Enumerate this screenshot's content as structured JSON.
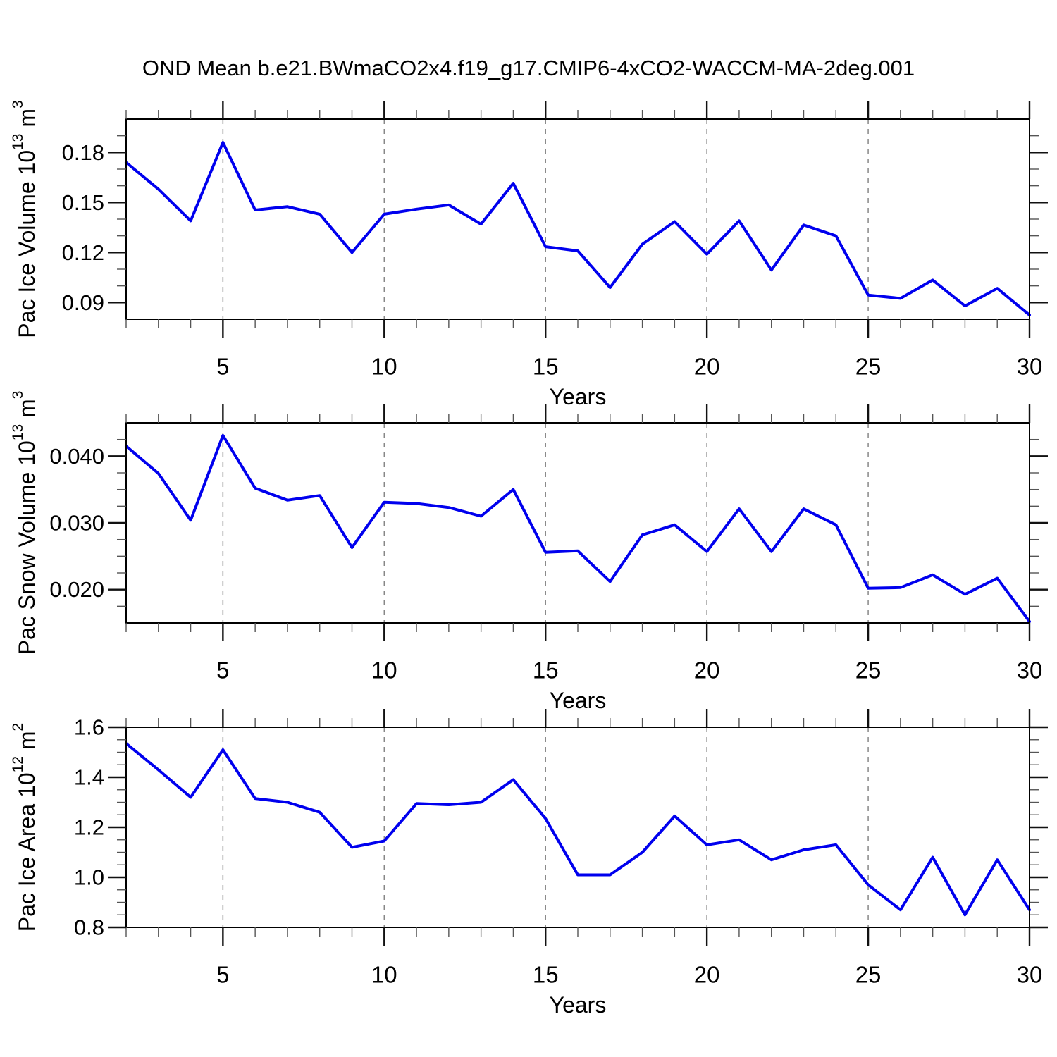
{
  "title": "OND Mean b.e21.BWmaCO2x4.f19_g17.CMIP6-4xCO2-WACCM-MA-2deg.001",
  "colors": {
    "line": "#0000ee",
    "grid": "#878787",
    "axis": "#000000",
    "major_tick": "#111111",
    "minor_tick": "#555555",
    "background": "#ffffff"
  },
  "chart_data": [
    {
      "type": "line",
      "ylabel": "Pac Ice Volume 10^13 m^3",
      "ylabel_rich": [
        [
          "Pac Ice Volume 10",
          false
        ],
        [
          "13",
          true
        ],
        [
          " m",
          false
        ],
        [
          "3",
          true
        ]
      ],
      "xlabel": "Years",
      "x": [
        2,
        3,
        4,
        5,
        6,
        7,
        8,
        9,
        10,
        11,
        12,
        13,
        14,
        15,
        16,
        17,
        18,
        19,
        20,
        21,
        22,
        23,
        24,
        25,
        26,
        27,
        28,
        29,
        30
      ],
      "values": [
        0.174,
        0.158,
        0.139,
        0.186,
        0.1455,
        0.1475,
        0.143,
        0.12,
        0.143,
        0.146,
        0.1485,
        0.137,
        0.1615,
        0.1235,
        0.121,
        0.099,
        0.125,
        0.1385,
        0.119,
        0.139,
        0.1095,
        0.1365,
        0.13,
        0.0945,
        0.0925,
        0.1035,
        0.088,
        0.0985,
        0.0825
      ],
      "xlim": [
        2,
        30
      ],
      "ylim": [
        0.08,
        0.2
      ],
      "x_ticks": [
        {
          "v": 5,
          "label": "5"
        },
        {
          "v": 10,
          "label": "10"
        },
        {
          "v": 15,
          "label": "15"
        },
        {
          "v": 20,
          "label": "20"
        },
        {
          "v": 25,
          "label": "25"
        },
        {
          "v": 30,
          "label": "30"
        }
      ],
      "x_minor_step": 1,
      "y_ticks": [
        {
          "v": 0.09,
          "label": "0.09"
        },
        {
          "v": 0.12,
          "label": "0.12"
        },
        {
          "v": 0.15,
          "label": "0.15"
        },
        {
          "v": 0.18,
          "label": "0.18"
        }
      ],
      "y_minor_step": 0.01,
      "grid_x": [
        5,
        10,
        15,
        20,
        25
      ],
      "grid_style": "dashed",
      "legend": null
    },
    {
      "type": "line",
      "ylabel": "Pac Snow Volume 10^13 m^3",
      "ylabel_rich": [
        [
          "Pac Snow Volume 10",
          false
        ],
        [
          "13",
          true
        ],
        [
          " m",
          false
        ],
        [
          "3",
          true
        ]
      ],
      "xlabel": "Years",
      "x": [
        2,
        3,
        4,
        5,
        6,
        7,
        8,
        9,
        10,
        11,
        12,
        13,
        14,
        15,
        16,
        17,
        18,
        19,
        20,
        21,
        22,
        23,
        24,
        25,
        26,
        27,
        28,
        29,
        30
      ],
      "values": [
        0.0415,
        0.0374,
        0.0304,
        0.0431,
        0.0352,
        0.0334,
        0.0341,
        0.0263,
        0.0331,
        0.0329,
        0.0323,
        0.031,
        0.035,
        0.0256,
        0.0258,
        0.0212,
        0.0282,
        0.0297,
        0.0257,
        0.0321,
        0.0257,
        0.0321,
        0.0297,
        0.0202,
        0.0203,
        0.0222,
        0.0193,
        0.0217,
        0.0152
      ],
      "xlim": [
        2,
        30
      ],
      "ylim": [
        0.015,
        0.045
      ],
      "x_ticks": [
        {
          "v": 5,
          "label": "5"
        },
        {
          "v": 10,
          "label": "10"
        },
        {
          "v": 15,
          "label": "15"
        },
        {
          "v": 20,
          "label": "20"
        },
        {
          "v": 25,
          "label": "25"
        },
        {
          "v": 30,
          "label": "30"
        }
      ],
      "x_minor_step": 1,
      "y_ticks": [
        {
          "v": 0.02,
          "label": "0.020"
        },
        {
          "v": 0.03,
          "label": "0.030"
        },
        {
          "v": 0.04,
          "label": "0.040"
        }
      ],
      "y_minor_step": 0.0025,
      "grid_x": [
        5,
        10,
        15,
        20,
        25
      ],
      "grid_style": "dashed",
      "legend": null
    },
    {
      "type": "line",
      "ylabel": "Pac Ice Area 10^12 m^2",
      "ylabel_rich": [
        [
          "Pac Ice Area 10",
          false
        ],
        [
          "12",
          true
        ],
        [
          " m",
          false
        ],
        [
          "2",
          true
        ]
      ],
      "xlabel": "Years",
      "x": [
        2,
        3,
        4,
        5,
        6,
        7,
        8,
        9,
        10,
        11,
        12,
        13,
        14,
        15,
        16,
        17,
        18,
        19,
        20,
        21,
        22,
        23,
        24,
        25,
        26,
        27,
        28,
        29,
        30
      ],
      "values": [
        1.535,
        1.43,
        1.32,
        1.51,
        1.315,
        1.3,
        1.26,
        1.12,
        1.145,
        1.295,
        1.29,
        1.3,
        1.39,
        1.235,
        1.01,
        1.01,
        1.1,
        1.245,
        1.13,
        1.15,
        1.07,
        1.11,
        1.13,
        0.97,
        0.87,
        1.08,
        0.85,
        1.07,
        0.87
      ],
      "xlim": [
        2,
        30
      ],
      "ylim": [
        0.8,
        1.6
      ],
      "x_ticks": [
        {
          "v": 5,
          "label": "5"
        },
        {
          "v": 10,
          "label": "10"
        },
        {
          "v": 15,
          "label": "15"
        },
        {
          "v": 20,
          "label": "20"
        },
        {
          "v": 25,
          "label": "25"
        },
        {
          "v": 30,
          "label": "30"
        }
      ],
      "x_minor_step": 1,
      "y_ticks": [
        {
          "v": 0.8,
          "label": "0.8"
        },
        {
          "v": 1.0,
          "label": "1.0"
        },
        {
          "v": 1.2,
          "label": "1.2"
        },
        {
          "v": 1.4,
          "label": "1.4"
        },
        {
          "v": 1.6,
          "label": "1.6"
        }
      ],
      "y_minor_step": 0.05,
      "grid_x": [
        5,
        10,
        15,
        20,
        25
      ],
      "grid_style": "dashed",
      "legend": null
    }
  ]
}
